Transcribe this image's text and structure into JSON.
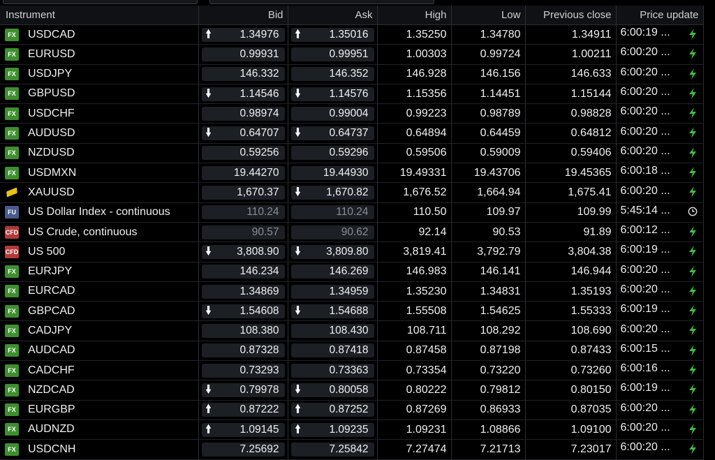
{
  "columns": {
    "instrument": "Instrument",
    "bid": "Bid",
    "ask": "Ask",
    "high": "High",
    "low": "Low",
    "prev": "Previous close",
    "update": "Price update"
  },
  "rows": [
    {
      "badge": "FX",
      "name": "USDCAD",
      "bid": "1.34976",
      "ask": "1.35016",
      "high": "1.35250",
      "low": "1.34780",
      "prev": "1.34911",
      "time": "6:00:19 ...",
      "bid_arrow": "up",
      "ask_arrow": "up",
      "status_icon": "lightning-icon"
    },
    {
      "badge": "FX",
      "name": "EURUSD",
      "bid": "0.99931",
      "ask": "0.99951",
      "high": "1.00303",
      "low": "0.99724",
      "prev": "1.00211",
      "time": "6:00:20 ...",
      "bid_arrow": "",
      "ask_arrow": "",
      "status_icon": "lightning-icon"
    },
    {
      "badge": "FX",
      "name": "USDJPY",
      "bid": "146.332",
      "ask": "146.352",
      "high": "146.928",
      "low": "146.156",
      "prev": "146.633",
      "time": "6:00:20 ...",
      "bid_arrow": "",
      "ask_arrow": "",
      "status_icon": "lightning-icon"
    },
    {
      "badge": "FX",
      "name": "GBPUSD",
      "bid": "1.14546",
      "ask": "1.14576",
      "high": "1.15356",
      "low": "1.14451",
      "prev": "1.15144",
      "time": "6:00:20 ...",
      "bid_arrow": "down",
      "ask_arrow": "down",
      "status_icon": "lightning-icon"
    },
    {
      "badge": "FX",
      "name": "USDCHF",
      "bid": "0.98974",
      "ask": "0.99004",
      "high": "0.99223",
      "low": "0.98789",
      "prev": "0.98828",
      "time": "6:00:20 ...",
      "bid_arrow": "",
      "ask_arrow": "",
      "status_icon": "lightning-icon"
    },
    {
      "badge": "FX",
      "name": "AUDUSD",
      "bid": "0.64707",
      "ask": "0.64737",
      "high": "0.64894",
      "low": "0.64459",
      "prev": "0.64812",
      "time": "6:00:20 ...",
      "bid_arrow": "down",
      "ask_arrow": "down",
      "status_icon": "lightning-icon"
    },
    {
      "badge": "FX",
      "name": "NZDUSD",
      "bid": "0.59256",
      "ask": "0.59296",
      "high": "0.59506",
      "low": "0.59009",
      "prev": "0.59406",
      "time": "6:00:20 ...",
      "bid_arrow": "",
      "ask_arrow": "",
      "status_icon": "lightning-icon"
    },
    {
      "badge": "FX",
      "name": "USDMXN",
      "bid": "19.44270",
      "ask": "19.44930",
      "high": "19.49331",
      "low": "19.43706",
      "prev": "19.45365",
      "time": "6:00:18 ...",
      "bid_arrow": "",
      "ask_arrow": "",
      "status_icon": "lightning-icon"
    },
    {
      "badge": "gold",
      "name": "XAUUSD",
      "bid": "1,670.37",
      "ask": "1,670.82",
      "high": "1,676.52",
      "low": "1,664.94",
      "prev": "1,675.41",
      "time": "6:00:20 ...",
      "bid_arrow": "",
      "ask_arrow": "down",
      "status_icon": "lightning-icon"
    },
    {
      "badge": "FU",
      "name": "US Dollar Index - continuous",
      "bid": "110.24",
      "ask": "110.24",
      "high": "110.50",
      "low": "109.97",
      "prev": "109.99",
      "time": "5:45:14 ...",
      "bid_arrow": "",
      "ask_arrow": "",
      "status_icon": "clock-icon",
      "dim": true
    },
    {
      "badge": "CFD",
      "name": "US Crude, continuous",
      "bid": "90.57",
      "ask": "90.62",
      "high": "92.14",
      "low": "90.53",
      "prev": "91.89",
      "time": "6:00:12 ...",
      "bid_arrow": "",
      "ask_arrow": "",
      "status_icon": "lightning-icon",
      "dim": true
    },
    {
      "badge": "CFD",
      "name": "US 500",
      "bid": "3,808.90",
      "ask": "3,809.80",
      "high": "3,819.41",
      "low": "3,792.79",
      "prev": "3,804.38",
      "time": "6:00:19 ...",
      "bid_arrow": "down",
      "ask_arrow": "down",
      "status_icon": "lightning-icon"
    },
    {
      "badge": "FX",
      "name": "EURJPY",
      "bid": "146.234",
      "ask": "146.269",
      "high": "146.983",
      "low": "146.141",
      "prev": "146.944",
      "time": "6:00:20 ...",
      "bid_arrow": "",
      "ask_arrow": "",
      "status_icon": "lightning-icon"
    },
    {
      "badge": "FX",
      "name": "EURCAD",
      "bid": "1.34869",
      "ask": "1.34959",
      "high": "1.35230",
      "low": "1.34831",
      "prev": "1.35193",
      "time": "6:00:20 ...",
      "bid_arrow": "",
      "ask_arrow": "",
      "status_icon": "lightning-icon"
    },
    {
      "badge": "FX",
      "name": "GBPCAD",
      "bid": "1.54608",
      "ask": "1.54688",
      "high": "1.55508",
      "low": "1.54625",
      "prev": "1.55333",
      "time": "6:00:19 ...",
      "bid_arrow": "down",
      "ask_arrow": "down",
      "status_icon": "lightning-icon"
    },
    {
      "badge": "FX",
      "name": "CADJPY",
      "bid": "108.380",
      "ask": "108.430",
      "high": "108.711",
      "low": "108.292",
      "prev": "108.690",
      "time": "6:00:20 ...",
      "bid_arrow": "",
      "ask_arrow": "",
      "status_icon": "lightning-icon"
    },
    {
      "badge": "FX",
      "name": "AUDCAD",
      "bid": "0.87328",
      "ask": "0.87418",
      "high": "0.87458",
      "low": "0.87198",
      "prev": "0.87433",
      "time": "6:00:15 ...",
      "bid_arrow": "",
      "ask_arrow": "",
      "status_icon": "lightning-icon"
    },
    {
      "badge": "FX",
      "name": "CADCHF",
      "bid": "0.73293",
      "ask": "0.73363",
      "high": "0.73354",
      "low": "0.73220",
      "prev": "0.73260",
      "time": "6:00:16 ...",
      "bid_arrow": "",
      "ask_arrow": "",
      "status_icon": "lightning-icon"
    },
    {
      "badge": "FX",
      "name": "NZDCAD",
      "bid": "0.79978",
      "ask": "0.80058",
      "high": "0.80222",
      "low": "0.79812",
      "prev": "0.80150",
      "time": "6:00:19 ...",
      "bid_arrow": "down",
      "ask_arrow": "down",
      "status_icon": "lightning-icon"
    },
    {
      "badge": "FX",
      "name": "EURGBP",
      "bid": "0.87222",
      "ask": "0.87252",
      "high": "0.87269",
      "low": "0.86933",
      "prev": "0.87035",
      "time": "6:00:20 ...",
      "bid_arrow": "up",
      "ask_arrow": "up",
      "status_icon": "lightning-icon"
    },
    {
      "badge": "FX",
      "name": "AUDNZD",
      "bid": "1.09145",
      "ask": "1.09235",
      "high": "1.09231",
      "low": "1.08866",
      "prev": "1.09100",
      "time": "6:00:20 ...",
      "bid_arrow": "up",
      "ask_arrow": "up",
      "status_icon": "lightning-icon"
    },
    {
      "badge": "FX",
      "name": "USDCNH",
      "bid": "7.25692",
      "ask": "7.25842",
      "high": "7.27474",
      "low": "7.21713",
      "prev": "7.23017",
      "time": "6:00:20 ...",
      "bid_arrow": "",
      "ask_arrow": "",
      "status_icon": "lightning-icon"
    }
  ],
  "colors": {
    "background": "#000000",
    "fx_badge": "#3f8f2f",
    "cfd_badge": "#b23a3a",
    "fu_badge": "#4a5a8c",
    "gold": "#e8c21c",
    "lightning": "#3fbf3f"
  }
}
